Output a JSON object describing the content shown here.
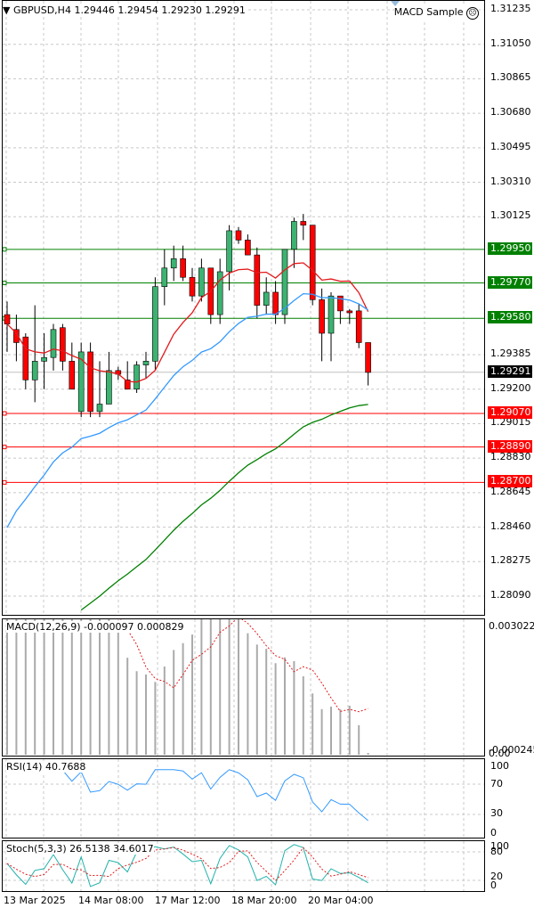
{
  "header": {
    "symbol_line": "GBPUSD,H4  1.29446 1.29454 1.29230 1.29291",
    "expert_label": "MACD Sample",
    "expert_icon": "frown-face-icon"
  },
  "price_scale": [
    "1.31235",
    "1.31050",
    "1.30865",
    "1.30680",
    "1.30495",
    "1.30310",
    "1.30125",
    "1.29385",
    "1.29200",
    "1.29015",
    "1.28830",
    "1.28645",
    "1.28460",
    "1.28275",
    "1.28090"
  ],
  "current_price": "1.29291",
  "horizontal_levels": [
    {
      "label": "1.29950",
      "color": "#008000"
    },
    {
      "label": "1.29770",
      "color": "#008000"
    },
    {
      "label": "1.29580",
      "color": "#008000"
    },
    {
      "label": "1.29070",
      "color": "#ff0000"
    },
    {
      "label": "1.28890",
      "color": "#ff0000"
    },
    {
      "label": "1.28700",
      "color": "#ff0000"
    }
  ],
  "macd": {
    "title": "MACD(12,26,9) -0.000097 0.000829",
    "scale_top": "0.003022",
    "scale_bottom": "0.00",
    "scale_bottom2": "-0.000245"
  },
  "rsi": {
    "title": "RSI(14) 40.7688",
    "levels": [
      "100",
      "70",
      "30",
      "0"
    ]
  },
  "stoch": {
    "title": "Stoch(5,3,3) 26.5138 34.6017",
    "levels": [
      "100",
      "80",
      "20",
      "0"
    ]
  },
  "time_axis": [
    "13 Mar 2025",
    "14 Mar 08:00",
    "17 Mar 12:00",
    "18 Mar 20:00",
    "20 Mar 04:00"
  ],
  "colors": {
    "bull": "#3cb371",
    "bear": "#ff0000",
    "ma_fast": "#e31a1c",
    "ma_mid": "#3399ff",
    "ma_slow": "#008000",
    "grid": "#c8c8c8"
  },
  "chart_data": {
    "type": "candlestick",
    "title": "GBPUSD,H4",
    "candles": [
      {
        "o": 1.296,
        "h": 1.2967,
        "l": 1.294,
        "c": 1.2955
      },
      {
        "o": 1.2952,
        "h": 1.296,
        "l": 1.2935,
        "c": 1.2945
      },
      {
        "o": 1.2948,
        "h": 1.295,
        "l": 1.292,
        "c": 1.2925
      },
      {
        "o": 1.2925,
        "h": 1.2965,
        "l": 1.2913,
        "c": 1.2935
      },
      {
        "o": 1.2935,
        "h": 1.295,
        "l": 1.292,
        "c": 1.2937
      },
      {
        "o": 1.2937,
        "h": 1.2955,
        "l": 1.293,
        "c": 1.2952
      },
      {
        "o": 1.2953,
        "h": 1.2955,
        "l": 1.293,
        "c": 1.2935
      },
      {
        "o": 1.2935,
        "h": 1.2945,
        "l": 1.292,
        "c": 1.292
      },
      {
        "o": 1.2908,
        "h": 1.2945,
        "l": 1.2905,
        "c": 1.294
      },
      {
        "o": 1.294,
        "h": 1.2945,
        "l": 1.2905,
        "c": 1.2908
      },
      {
        "o": 1.2908,
        "h": 1.2935,
        "l": 1.2905,
        "c": 1.2912
      },
      {
        "o": 1.2912,
        "h": 1.294,
        "l": 1.2912,
        "c": 1.293
      },
      {
        "o": 1.293,
        "h": 1.2932,
        "l": 1.2925,
        "c": 1.2928
      },
      {
        "o": 1.2925,
        "h": 1.2935,
        "l": 1.292,
        "c": 1.292
      },
      {
        "o": 1.292,
        "h": 1.2935,
        "l": 1.2918,
        "c": 1.2933
      },
      {
        "o": 1.2933,
        "h": 1.294,
        "l": 1.2926,
        "c": 1.2935
      },
      {
        "o": 1.2935,
        "h": 1.298,
        "l": 1.293,
        "c": 1.2975
      },
      {
        "o": 1.2975,
        "h": 1.2995,
        "l": 1.2965,
        "c": 1.2985
      },
      {
        "o": 1.2985,
        "h": 1.2997,
        "l": 1.2978,
        "c": 1.299
      },
      {
        "o": 1.299,
        "h": 1.2997,
        "l": 1.2978,
        "c": 1.298
      },
      {
        "o": 1.298,
        "h": 1.2985,
        "l": 1.2967,
        "c": 1.297
      },
      {
        "o": 1.297,
        "h": 1.299,
        "l": 1.2967,
        "c": 1.2985
      },
      {
        "o": 1.2985,
        "h": 1.2985,
        "l": 1.2955,
        "c": 1.296
      },
      {
        "o": 1.296,
        "h": 1.299,
        "l": 1.2955,
        "c": 1.2983
      },
      {
        "o": 1.2983,
        "h": 1.3008,
        "l": 1.2973,
        "c": 1.3005
      },
      {
        "o": 1.3005,
        "h": 1.3007,
        "l": 1.2998,
        "c": 1.3
      },
      {
        "o": 1.3,
        "h": 1.3003,
        "l": 1.2992,
        "c": 1.2992
      },
      {
        "o": 1.2992,
        "h": 1.2996,
        "l": 1.2958,
        "c": 1.2965
      },
      {
        "o": 1.2965,
        "h": 1.298,
        "l": 1.296,
        "c": 1.2972
      },
      {
        "o": 1.2972,
        "h": 1.2978,
        "l": 1.2955,
        "c": 1.296
      },
      {
        "o": 1.296,
        "h": 1.2995,
        "l": 1.2955,
        "c": 1.2995
      },
      {
        "o": 1.2995,
        "h": 1.3012,
        "l": 1.2985,
        "c": 1.301
      },
      {
        "o": 1.301,
        "h": 1.3014,
        "l": 1.3,
        "c": 1.3008
      },
      {
        "o": 1.3008,
        "h": 1.3008,
        "l": 1.2965,
        "c": 1.2968
      },
      {
        "o": 1.2968,
        "h": 1.2974,
        "l": 1.2935,
        "c": 1.295
      },
      {
        "o": 1.295,
        "h": 1.2972,
        "l": 1.2935,
        "c": 1.297
      },
      {
        "o": 1.297,
        "h": 1.297,
        "l": 1.2955,
        "c": 1.2962
      },
      {
        "o": 1.2962,
        "h": 1.2963,
        "l": 1.2955,
        "c": 1.2961
      },
      {
        "o": 1.2962,
        "h": 1.2966,
        "l": 1.2942,
        "c": 1.2945
      },
      {
        "o": 1.2945,
        "h": 1.2945,
        "l": 1.2922,
        "c": 1.2929
      }
    ]
  }
}
